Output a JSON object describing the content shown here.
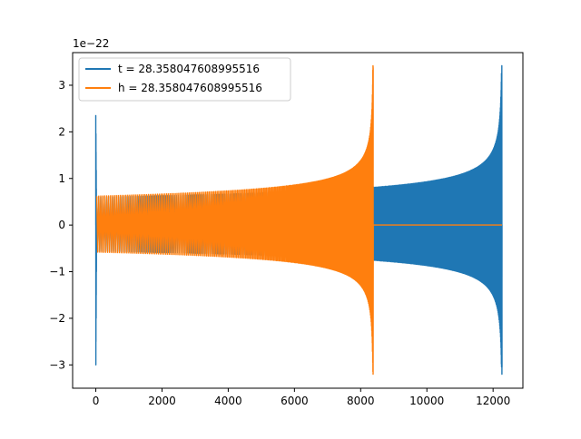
{
  "chart_data": {
    "type": "line",
    "title": "",
    "xlabel": "",
    "ylabel": "",
    "y_offset_label": "1e−22",
    "xlim": [
      -700,
      12900
    ],
    "ylim": [
      -3.5,
      3.7
    ],
    "x_ticks": [
      0,
      2000,
      4000,
      6000,
      8000,
      10000,
      12000
    ],
    "x_tick_labels": [
      "0",
      "2000",
      "4000",
      "6000",
      "8000",
      "10000",
      "12000"
    ],
    "y_ticks": [
      -3,
      -2,
      -1,
      0,
      1,
      2,
      3
    ],
    "y_tick_labels": [
      "−3",
      "−2",
      "−1",
      "0",
      "1",
      "2",
      "3"
    ],
    "grid": false,
    "legend_position": "upper-left",
    "series": [
      {
        "name": "t = 28.358047608995516",
        "color": "#1f77b4",
        "signal": "chirp",
        "x_start": 0,
        "x_end": 12270,
        "initial_spike": [
          2.35,
          -3.0
        ],
        "start_amplitude": 0.6,
        "end_amplitude": 3.42,
        "end_min": -3.2,
        "zero_after": 12270
      },
      {
        "name": "h = 28.358047608995516",
        "color": "#ff7f0e",
        "signal": "chirp",
        "x_start": 0,
        "x_end": 8380,
        "initial_spike": [
          0.0,
          0.0
        ],
        "start_amplitude": 0.62,
        "end_amplitude": 3.42,
        "end_min": -3.2,
        "zero_after": 8380,
        "flat_until": 12270
      }
    ]
  }
}
